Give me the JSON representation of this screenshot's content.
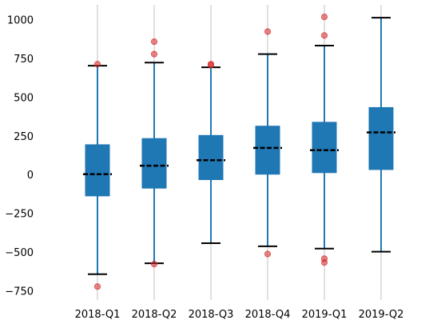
{
  "colors": {
    "box_fill": "#1f77b4",
    "whisker": "#1f77b4",
    "median": "#000000",
    "cap": "#000000",
    "outlier": "#d62728",
    "grid": "#cccccc"
  },
  "chart_data": {
    "type": "box",
    "title": "",
    "xlabel": "",
    "ylabel": "",
    "ylim": [
      -800,
      1100
    ],
    "yticks": [
      -750,
      -500,
      -250,
      0,
      250,
      500,
      750,
      1000
    ],
    "ytick_labels": [
      "−750",
      "−500",
      "−250",
      "0",
      "250",
      "500",
      "750",
      "1000"
    ],
    "categories": [
      "2018-Q1",
      "2018-Q2",
      "2018-Q3",
      "2018-Q4",
      "2019-Q1",
      "2019-Q2"
    ],
    "grid": "vertical",
    "boxes": [
      {
        "category": "2018-Q1",
        "whisker_low": -640,
        "q1": -135,
        "median": 5,
        "q3": 195,
        "whisker_high": 705,
        "outliers": [
          715,
          -720
        ]
      },
      {
        "category": "2018-Q2",
        "whisker_low": -570,
        "q1": -85,
        "median": 60,
        "q3": 235,
        "whisker_high": 725,
        "outliers": [
          860,
          780,
          -575
        ]
      },
      {
        "category": "2018-Q3",
        "whisker_low": -440,
        "q1": -30,
        "median": 95,
        "q3": 255,
        "whisker_high": 695,
        "outliers": [
          715,
          710
        ]
      },
      {
        "category": "2018-Q4",
        "whisker_low": -460,
        "q1": 5,
        "median": 175,
        "q3": 315,
        "whisker_high": 780,
        "outliers": [
          925,
          -510
        ]
      },
      {
        "category": "2019-Q1",
        "whisker_low": -475,
        "q1": 15,
        "median": 160,
        "q3": 340,
        "whisker_high": 835,
        "outliers": [
          1020,
          900,
          -540,
          -565
        ]
      },
      {
        "category": "2019-Q2",
        "whisker_low": -495,
        "q1": 35,
        "median": 275,
        "q3": 435,
        "whisker_high": 1015,
        "outliers": []
      }
    ]
  }
}
